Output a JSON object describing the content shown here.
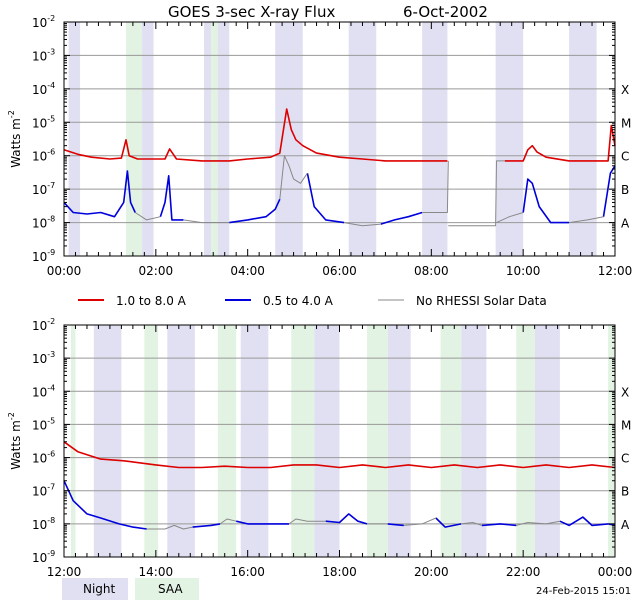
{
  "title": "GOES 3-sec X-ray Flux",
  "date": "6-Oct-2002",
  "ylabel": "Watts m",
  "ylabel_exp": "-2",
  "footer_date": "24-Feb-2015 15:01",
  "legend": {
    "long": "1.0 to 8.0 A",
    "short": "0.5 to 4.0 A",
    "norhessi": "No RHESSI Solar Data",
    "night": "Night",
    "saa": "SAA"
  },
  "colors": {
    "long": "#dd0000",
    "short": "#0000dd",
    "norhessi": "#888888",
    "night": "#e0e0f2",
    "saa": "#e3f3e3",
    "grid": "#999999"
  },
  "class_labels": [
    "X",
    "M",
    "C",
    "B",
    "A"
  ],
  "chart_data": [
    {
      "type": "line",
      "title": "GOES 3-sec X-ray Flux    6-Oct-2002",
      "xlabel": "",
      "ylabel": "Watts m-2",
      "log_y": true,
      "ylim": [
        1e-09,
        0.01
      ],
      "xlim_hours": [
        0,
        12
      ],
      "x_tick_labels": [
        "00:00",
        "02:00",
        "04:00",
        "06:00",
        "08:00",
        "10:00",
        "12:00"
      ],
      "y_tick_labels": [
        "10-9",
        "10-8",
        "10-7",
        "10-6",
        "10-5",
        "10-4",
        "10-3",
        "10-2"
      ],
      "grid": true,
      "night_hours": [
        [
          0.1,
          0.35
        ],
        [
          1.7,
          1.95
        ],
        [
          3.05,
          3.6
        ],
        [
          4.6,
          5.2
        ],
        [
          6.2,
          6.8
        ],
        [
          7.8,
          8.35
        ],
        [
          9.4,
          10.0
        ],
        [
          11.0,
          11.6
        ]
      ],
      "saa_hours": [
        [
          1.35,
          1.7
        ],
        [
          3.2,
          3.35
        ]
      ],
      "series": [
        {
          "name": "1.0 to 8.0 A",
          "segments": [
            [
              [
                0.0,
                1.5e-06
              ],
              [
                0.3,
                1.1e-06
              ],
              [
                0.6,
                9e-07
              ],
              [
                1.0,
                8e-07
              ],
              [
                1.25,
                8.5e-07
              ],
              [
                1.35,
                3e-06
              ],
              [
                1.42,
                1e-06
              ],
              [
                1.6,
                8e-07
              ],
              [
                2.2,
                8e-07
              ],
              [
                2.3,
                1.6e-06
              ],
              [
                2.45,
                8e-07
              ],
              [
                3.0,
                7e-07
              ],
              [
                3.6,
                7e-07
              ],
              [
                4.0,
                8e-07
              ],
              [
                4.5,
                9e-07
              ],
              [
                4.7,
                1.2e-06
              ],
              [
                4.85,
                2.5e-05
              ],
              [
                4.95,
                6e-06
              ],
              [
                5.05,
                3e-06
              ],
              [
                5.2,
                2e-06
              ],
              [
                5.5,
                1.2e-06
              ],
              [
                6.0,
                9e-07
              ],
              [
                6.5,
                8e-07
              ],
              [
                7.0,
                7e-07
              ],
              [
                7.5,
                7e-07
              ],
              [
                8.35,
                7e-07
              ]
            ],
            [
              [
                9.6,
                7e-07
              ],
              [
                10.0,
                7e-07
              ],
              [
                10.1,
                1.5e-06
              ],
              [
                10.2,
                2e-06
              ],
              [
                10.3,
                1.3e-06
              ],
              [
                10.5,
                9e-07
              ],
              [
                11.0,
                7e-07
              ],
              [
                11.5,
                7e-07
              ],
              [
                11.85,
                7e-07
              ],
              [
                11.92,
                8e-06
              ],
              [
                12.0,
                2e-06
              ]
            ]
          ]
        },
        {
          "name": "0.5 to 4.0 A",
          "segments": [
            [
              [
                0.0,
                4e-08
              ],
              [
                0.2,
                2e-08
              ],
              [
                0.5,
                1.8e-08
              ],
              [
                0.8,
                2e-08
              ],
              [
                1.1,
                1.5e-08
              ],
              [
                1.3,
                4e-08
              ],
              [
                1.38,
                3.5e-07
              ],
              [
                1.45,
                4e-08
              ],
              [
                1.55,
                2e-08
              ]
            ],
            [
              [
                2.1,
                1.5e-08
              ],
              [
                2.2,
                4e-08
              ],
              [
                2.28,
                2.5e-07
              ],
              [
                2.35,
                1.2e-08
              ],
              [
                2.5,
                1.2e-08
              ],
              [
                2.6,
                1.2e-08
              ]
            ],
            [
              [
                3.6,
                1e-08
              ],
              [
                4.0,
                1.2e-08
              ],
              [
                4.4,
                1.5e-08
              ],
              [
                4.6,
                2.5e-08
              ],
              [
                4.7,
                5e-08
              ]
            ],
            [
              [
                5.3,
                3e-07
              ],
              [
                5.45,
                3e-08
              ],
              [
                5.7,
                1.2e-08
              ],
              [
                6.1,
                1e-08
              ]
            ],
            [
              [
                6.9,
                9e-09
              ],
              [
                7.2,
                1.2e-08
              ],
              [
                7.5,
                1.5e-08
              ],
              [
                7.8,
                2e-08
              ]
            ],
            [
              [
                10.0,
                2e-08
              ],
              [
                10.1,
                2e-07
              ],
              [
                10.2,
                1.5e-07
              ],
              [
                10.35,
                3e-08
              ],
              [
                10.6,
                1e-08
              ],
              [
                11.0,
                1e-08
              ]
            ],
            [
              [
                11.75,
                1.5e-08
              ],
              [
                11.9,
                3e-07
              ],
              [
                12.0,
                5e-07
              ]
            ]
          ]
        },
        {
          "name": "No RHESSI Solar Data",
          "segments": [
            [
              [
                1.55,
                2e-08
              ],
              [
                1.8,
                1.2e-08
              ],
              [
                2.1,
                1.5e-08
              ]
            ],
            [
              [
                2.6,
                1.2e-08
              ],
              [
                3.0,
                1e-08
              ],
              [
                3.6,
                1e-08
              ]
            ],
            [
              [
                4.7,
                5e-08
              ],
              [
                4.8,
                1e-06
              ],
              [
                4.9,
                5e-07
              ],
              [
                5.0,
                2e-07
              ],
              [
                5.15,
                1.5e-07
              ],
              [
                5.3,
                3e-07
              ]
            ],
            [
              [
                6.1,
                1e-08
              ],
              [
                6.5,
                8e-09
              ],
              [
                6.9,
                9e-09
              ]
            ],
            [
              [
                7.8,
                2e-08
              ],
              [
                8.1,
                2e-08
              ],
              [
                8.35,
                2e-08
              ],
              [
                8.37,
                7e-07
              ]
            ],
            [
              [
                8.37,
                8e-09
              ],
              [
                9.4,
                8e-09
              ],
              [
                9.42,
                7e-07
              ],
              [
                9.6,
                7e-07
              ]
            ],
            [
              [
                9.42,
                1e-08
              ],
              [
                9.7,
                1.5e-08
              ],
              [
                10.0,
                2e-08
              ]
            ],
            [
              [
                11.0,
                1e-08
              ],
              [
                11.4,
                1.2e-08
              ],
              [
                11.75,
                1.5e-08
              ]
            ]
          ]
        }
      ]
    },
    {
      "type": "line",
      "title": "",
      "xlabel": "",
      "ylabel": "Watts m-2",
      "log_y": true,
      "ylim": [
        1e-09,
        0.01
      ],
      "xlim_hours": [
        12,
        24
      ],
      "x_tick_labels": [
        "12:00",
        "14:00",
        "16:00",
        "18:00",
        "20:00",
        "22:00",
        "00:00"
      ],
      "y_tick_labels": [
        "10-9",
        "10-8",
        "10-7",
        "10-6",
        "10-5",
        "10-4",
        "10-3",
        "10-2"
      ],
      "grid": true,
      "night_hours": [
        [
          12.65,
          13.25
        ],
        [
          14.25,
          14.85
        ],
        [
          15.85,
          16.45
        ],
        [
          17.45,
          18.0
        ],
        [
          19.05,
          19.55
        ],
        [
          20.65,
          21.2
        ],
        [
          22.25,
          22.8
        ]
      ],
      "saa_hours": [
        [
          12.15,
          12.25
        ],
        [
          13.75,
          14.05
        ],
        [
          15.35,
          15.75
        ],
        [
          16.95,
          17.45
        ],
        [
          18.6,
          19.05
        ],
        [
          20.2,
          20.65
        ],
        [
          21.85,
          22.25
        ],
        [
          23.85,
          24.0
        ]
      ],
      "series": [
        {
          "name": "1.0 to 8.0 A",
          "segments": [
            [
              [
                12.0,
                3e-06
              ],
              [
                12.3,
                1.5e-06
              ],
              [
                12.8,
                9e-07
              ],
              [
                13.3,
                8e-07
              ],
              [
                14.0,
                6e-07
              ],
              [
                14.5,
                5e-07
              ],
              [
                15.0,
                5e-07
              ],
              [
                15.5,
                5.5e-07
              ],
              [
                16.0,
                5e-07
              ],
              [
                16.5,
                5e-07
              ],
              [
                17.0,
                6e-07
              ],
              [
                17.5,
                6e-07
              ],
              [
                18.0,
                5e-07
              ],
              [
                18.5,
                6e-07
              ],
              [
                19.0,
                5e-07
              ],
              [
                19.5,
                6e-07
              ],
              [
                20.0,
                5e-07
              ],
              [
                20.5,
                6e-07
              ],
              [
                21.0,
                5e-07
              ],
              [
                21.5,
                6e-07
              ],
              [
                22.0,
                5e-07
              ],
              [
                22.5,
                6e-07
              ],
              [
                23.0,
                5e-07
              ],
              [
                23.5,
                6e-07
              ],
              [
                24.0,
                5e-07
              ]
            ]
          ]
        },
        {
          "name": "0.5 to 4.0 A",
          "segments": [
            [
              [
                12.0,
                2e-07
              ],
              [
                12.2,
                5e-08
              ],
              [
                12.5,
                2e-08
              ],
              [
                12.8,
                1.5e-08
              ],
              [
                13.2,
                1e-08
              ],
              [
                13.5,
                8e-09
              ],
              [
                13.8,
                7e-09
              ]
            ],
            [
              [
                14.8,
                8e-09
              ],
              [
                15.2,
                9e-09
              ],
              [
                15.4,
                1e-08
              ]
            ],
            [
              [
                15.75,
                1.2e-08
              ],
              [
                16.0,
                1e-08
              ],
              [
                16.4,
                1e-08
              ],
              [
                16.9,
                1e-08
              ]
            ],
            [
              [
                17.7,
                1.2e-08
              ],
              [
                18.0,
                1.1e-08
              ],
              [
                18.2,
                2e-08
              ],
              [
                18.4,
                1.2e-08
              ],
              [
                18.6,
                1e-08
              ]
            ],
            [
              [
                19.05,
                1e-08
              ],
              [
                19.4,
                9e-09
              ]
            ],
            [
              [
                20.1,
                1.5e-08
              ],
              [
                20.3,
                8e-09
              ],
              [
                20.65,
                1e-08
              ]
            ],
            [
              [
                21.1,
                9e-09
              ],
              [
                21.5,
                1e-08
              ],
              [
                21.85,
                9e-09
              ]
            ],
            [
              [
                22.8,
                1.2e-08
              ],
              [
                23.0,
                9e-09
              ],
              [
                23.3,
                1.6e-08
              ],
              [
                23.5,
                9e-09
              ],
              [
                23.85,
                1e-08
              ],
              [
                24.0,
                9e-09
              ]
            ]
          ]
        },
        {
          "name": "No RHESSI Solar Data",
          "segments": [
            [
              [
                13.8,
                7e-09
              ],
              [
                14.2,
                7e-09
              ],
              [
                14.4,
                9e-09
              ],
              [
                14.6,
                7e-09
              ],
              [
                14.8,
                8e-09
              ]
            ],
            [
              [
                15.4,
                1e-08
              ],
              [
                15.55,
                1.4e-08
              ],
              [
                15.75,
                1.2e-08
              ]
            ],
            [
              [
                16.9,
                1e-08
              ],
              [
                17.05,
                1.4e-08
              ],
              [
                17.3,
                1.2e-08
              ],
              [
                17.7,
                1.2e-08
              ]
            ],
            [
              [
                18.6,
                1e-08
              ],
              [
                19.05,
                1e-08
              ]
            ],
            [
              [
                19.4,
                9e-09
              ],
              [
                19.8,
                1e-08
              ],
              [
                20.1,
                1.5e-08
              ]
            ],
            [
              [
                20.65,
                1e-08
              ],
              [
                20.9,
                1.1e-08
              ],
              [
                21.1,
                9e-09
              ]
            ],
            [
              [
                21.85,
                9e-09
              ],
              [
                22.1,
                1.1e-08
              ],
              [
                22.5,
                1e-08
              ],
              [
                22.8,
                1.2e-08
              ]
            ]
          ]
        }
      ]
    }
  ]
}
